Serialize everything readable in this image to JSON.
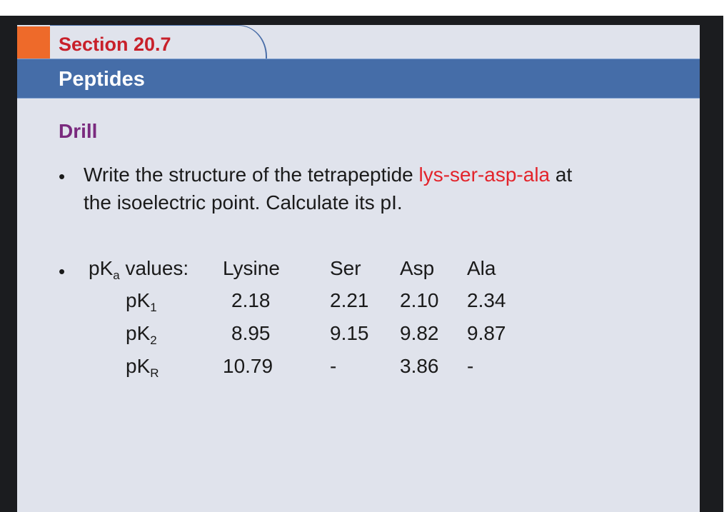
{
  "section": "Section 20.7",
  "title": "Peptides",
  "heading": "Drill",
  "bullet1": {
    "pre": "Write the structure of the tetrapeptide ",
    "highlight": "lys-ser-asp-ala",
    "post": " at",
    "line2": "the isoelectric point. Calculate its pI."
  },
  "bullet2": {
    "label_pre": "pK",
    "label_sub": "a",
    "label_post": " values:"
  },
  "table": {
    "columns": [
      "Lysine",
      "Ser",
      "Asp",
      "Ala"
    ],
    "rows": [
      {
        "base": "pK",
        "sub": "1",
        "values": [
          "2.18",
          "2.21",
          "2.10",
          "2.34"
        ]
      },
      {
        "base": "pK",
        "sub": "2",
        "values": [
          "8.95",
          "9.15",
          "9.82",
          "9.87"
        ]
      },
      {
        "base": "pK",
        "sub": "R",
        "values": [
          "10.79",
          "-",
          "3.86",
          "-"
        ]
      }
    ]
  },
  "colors": {
    "accent_orange": "#ee6a2a",
    "title_bar": "#456da8",
    "section_red": "#c8202a",
    "heading_purple": "#7a2a7e",
    "highlight_red": "#e3242b"
  }
}
